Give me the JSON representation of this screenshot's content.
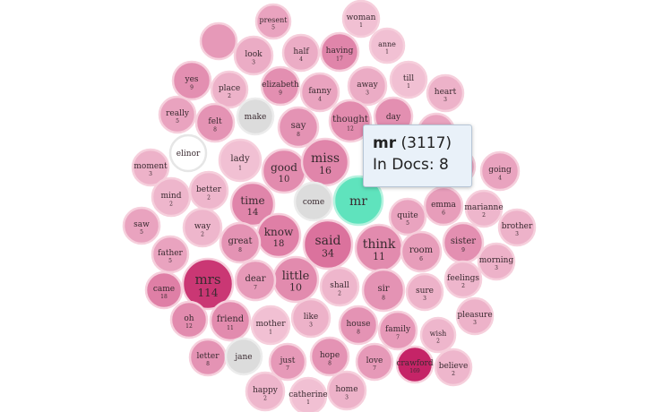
{
  "tooltip": {
    "word": "mr",
    "count_text": "(3117)",
    "docs_label": "In Docs:",
    "docs_value": "8"
  },
  "colors": {
    "highlight": "#5fe3bd",
    "neutral": "#dcdcdc",
    "white": "#ffffff",
    "scale_light": "#f9dde7",
    "scale_dark": "#c21a60"
  },
  "bubbles": [
    {
      "word": "present",
      "count": "5",
      "shade": 0.3
    },
    {
      "word": "woman",
      "count": "1",
      "shade": 0.15
    },
    {
      "word": "look",
      "count": "3",
      "shade": 0.25
    },
    {
      "word": "half",
      "count": "4",
      "shade": 0.25
    },
    {
      "word": "having",
      "count": "17",
      "shade": 0.45
    },
    {
      "word": "anne",
      "count": "1",
      "shade": 0.15
    },
    {
      "word": "yes",
      "count": "9",
      "shade": 0.4
    },
    {
      "word": "place",
      "count": "2",
      "shade": 0.22
    },
    {
      "word": "elizabeth",
      "count": "9",
      "shade": 0.4
    },
    {
      "word": "fanny",
      "count": "4",
      "shade": 0.3
    },
    {
      "word": "away",
      "count": "3",
      "shade": 0.25
    },
    {
      "word": "till",
      "count": "1",
      "shade": 0.15
    },
    {
      "word": "heart",
      "count": "3",
      "shade": 0.22
    },
    {
      "word": "really",
      "count": "5",
      "shade": 0.3
    },
    {
      "word": "felt",
      "count": "8",
      "shade": 0.38
    },
    {
      "word": "make",
      "count": "",
      "shade": "neutral"
    },
    {
      "word": "say",
      "count": "8",
      "shade": 0.38
    },
    {
      "word": "thought",
      "count": "12",
      "shade": 0.42
    },
    {
      "word": "day",
      "count": "",
      "shade": 0.4
    },
    {
      "word": "elinor",
      "count": "",
      "shade": "white"
    },
    {
      "word": "lady",
      "count": "1",
      "shade": 0.15
    },
    {
      "word": "good",
      "count": "10",
      "shade": 0.42
    },
    {
      "word": "miss",
      "count": "16",
      "shade": 0.45
    },
    {
      "word": "going",
      "count": "4",
      "shade": 0.3
    },
    {
      "word": "moment",
      "count": "3",
      "shade": 0.22
    },
    {
      "word": "better",
      "count": "2",
      "shade": 0.2
    },
    {
      "word": "mind",
      "count": "2",
      "shade": 0.2
    },
    {
      "word": "time",
      "count": "14",
      "shade": 0.45
    },
    {
      "word": "come",
      "count": "",
      "shade": "neutral"
    },
    {
      "word": "mr",
      "count": "",
      "shade": "highlight"
    },
    {
      "word": "quite",
      "count": "5",
      "shade": 0.3
    },
    {
      "word": "emma",
      "count": "6",
      "shade": 0.33
    },
    {
      "word": "marianne",
      "count": "2",
      "shade": 0.2
    },
    {
      "word": "saw",
      "count": "5",
      "shade": 0.3
    },
    {
      "word": "way",
      "count": "2",
      "shade": 0.2
    },
    {
      "word": "know",
      "count": "18",
      "shade": 0.48
    },
    {
      "word": "said",
      "count": "34",
      "shade": 0.55
    },
    {
      "word": "think",
      "count": "11",
      "shade": 0.42
    },
    {
      "word": "brother",
      "count": "3",
      "shade": 0.22
    },
    {
      "word": "father",
      "count": "5",
      "shade": 0.3
    },
    {
      "word": "great",
      "count": "8",
      "shade": 0.38
    },
    {
      "word": "room",
      "count": "6",
      "shade": 0.33
    },
    {
      "word": "sister",
      "count": "9",
      "shade": 0.4
    },
    {
      "word": "morning",
      "count": "3",
      "shade": 0.22
    },
    {
      "word": "mrs",
      "count": "114",
      "shade": 0.85
    },
    {
      "word": "little",
      "count": "10",
      "shade": 0.42
    },
    {
      "word": "came",
      "count": "18",
      "shade": 0.48
    },
    {
      "word": "dear",
      "count": "7",
      "shade": 0.35
    },
    {
      "word": "shall",
      "count": "2",
      "shade": 0.2
    },
    {
      "word": "sir",
      "count": "8",
      "shade": 0.38
    },
    {
      "word": "sure",
      "count": "3",
      "shade": 0.22
    },
    {
      "word": "feelings",
      "count": "2",
      "shade": 0.2
    },
    {
      "word": "oh",
      "count": "12",
      "shade": 0.42
    },
    {
      "word": "friend",
      "count": "11",
      "shade": 0.42
    },
    {
      "word": "mother",
      "count": "1",
      "shade": 0.15
    },
    {
      "word": "like",
      "count": "3",
      "shade": 0.22
    },
    {
      "word": "house",
      "count": "8",
      "shade": 0.38
    },
    {
      "word": "family",
      "count": "7",
      "shade": 0.35
    },
    {
      "word": "pleasure",
      "count": "3",
      "shade": 0.22
    },
    {
      "word": "wish",
      "count": "2",
      "shade": 0.2
    },
    {
      "word": "letter",
      "count": "8",
      "shade": 0.38
    },
    {
      "word": "jane",
      "count": "",
      "shade": "neutral"
    },
    {
      "word": "just",
      "count": "7",
      "shade": 0.35
    },
    {
      "word": "hope",
      "count": "8",
      "shade": 0.38
    },
    {
      "word": "love",
      "count": "7",
      "shade": 0.35
    },
    {
      "word": "crawford",
      "count": "169",
      "shade": 0.95
    },
    {
      "word": "believe",
      "count": "2",
      "shade": 0.2
    },
    {
      "word": "happy",
      "count": "2",
      "shade": 0.2
    },
    {
      "word": "catherine",
      "count": "1",
      "shade": 0.15
    },
    {
      "word": "home",
      "count": "3",
      "shade": 0.22
    },
    {
      "word": "",
      "count": "",
      "shade": 0.3
    },
    {
      "word": "",
      "count": "",
      "shade": 0.2
    },
    {
      "word": "",
      "count": "",
      "shade": 0.3
    },
    {
      "word": "",
      "count": "",
      "shade": 0.35
    }
  ]
}
